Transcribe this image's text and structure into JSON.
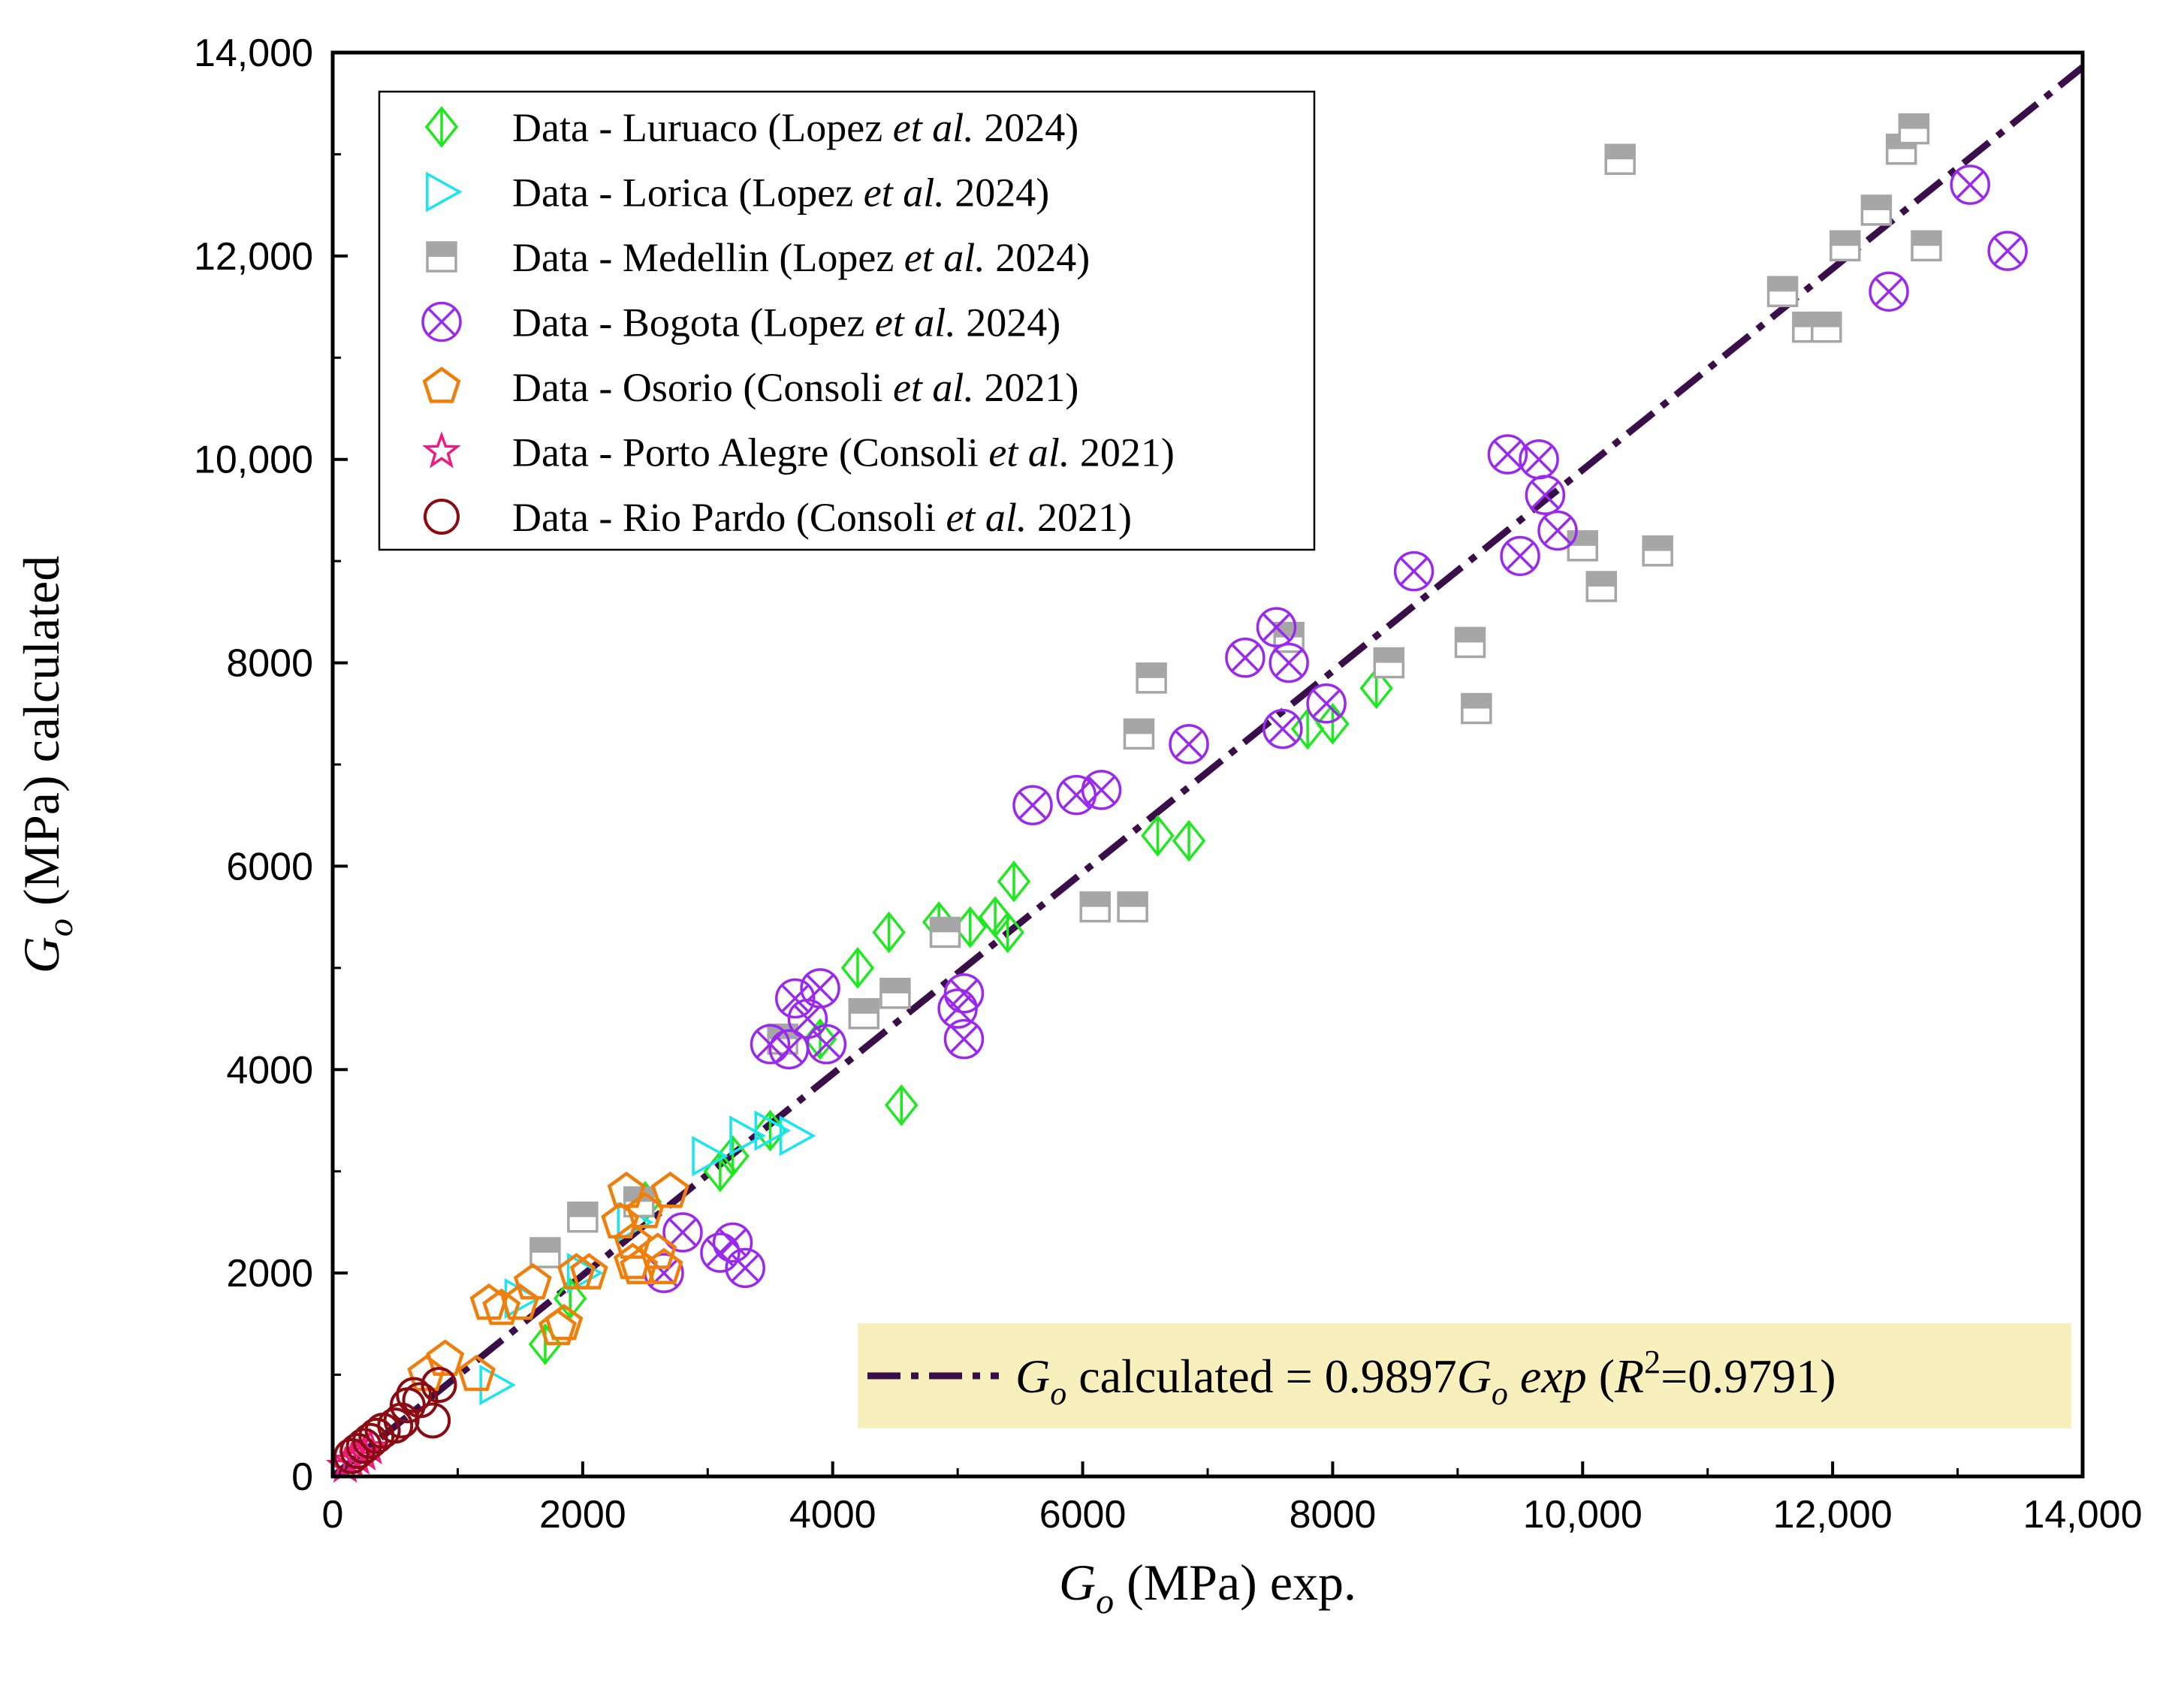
{
  "chart_data": {
    "type": "scatter",
    "xlabel": {
      "var": "G",
      "sub": "o",
      "text": " (MPa) exp."
    },
    "ylabel": {
      "var": "G",
      "sub": "o",
      "text": " (MPa) calculated"
    },
    "xlim": [
      0,
      14000
    ],
    "ylim": [
      0,
      14000
    ],
    "x_ticks": [
      0,
      2000,
      4000,
      6000,
      8000,
      10000,
      12000,
      14000
    ],
    "x_tick_labels": [
      "0",
      "2000",
      "4000",
      "6000",
      "8000",
      "10,000",
      "12,000",
      "14,000"
    ],
    "y_ticks": [
      0,
      2000,
      4000,
      6000,
      8000,
      10000,
      12000,
      14000
    ],
    "y_tick_labels": [
      "0",
      "2000",
      "4000",
      "6000",
      "8000",
      "10,000",
      "12,000",
      "14,000"
    ],
    "legend_position": "top-left",
    "series": [
      {
        "name": "Luruaco",
        "marker": "diamond",
        "color": "#1ee81e",
        "legend": {
          "pre": "Data - Luruaco (Lopez ",
          "it": "et al.",
          "post": " 2024)"
        },
        "points": [
          [
            1700,
            1300
          ],
          [
            1900,
            1750
          ],
          [
            2500,
            2700
          ],
          [
            3100,
            3000
          ],
          [
            3200,
            3150
          ],
          [
            3500,
            3400
          ],
          [
            3900,
            4300
          ],
          [
            4200,
            5000
          ],
          [
            4450,
            5350
          ],
          [
            4550,
            3650
          ],
          [
            4850,
            5450
          ],
          [
            5100,
            5400
          ],
          [
            5300,
            5500
          ],
          [
            5400,
            5350
          ],
          [
            5450,
            5850
          ],
          [
            6600,
            6300
          ],
          [
            6850,
            6250
          ],
          [
            7800,
            7350
          ],
          [
            8000,
            7400
          ],
          [
            8350,
            7750
          ]
        ]
      },
      {
        "name": "Lorica",
        "marker": "triangle-right",
        "color": "#18e5ef",
        "legend": {
          "pre": "Data - Lorica (Lopez ",
          "it": "et al.",
          "post": " 2024)"
        },
        "points": [
          [
            1300,
            900
          ],
          [
            1500,
            1750
          ],
          [
            2000,
            2000
          ],
          [
            2400,
            2500
          ],
          [
            3000,
            3150
          ],
          [
            3300,
            3350
          ],
          [
            3500,
            3400
          ],
          [
            3700,
            3350
          ]
        ]
      },
      {
        "name": "Medellin",
        "marker": "square-half",
        "color": "#a6a6a6",
        "legend": {
          "pre": "Data - Medellin (Lopez ",
          "it": "et al.",
          "post": " 2024)"
        },
        "points": [
          [
            1700,
            2200
          ],
          [
            2000,
            2550
          ],
          [
            2450,
            2700
          ],
          [
            3600,
            4300
          ],
          [
            4250,
            4550
          ],
          [
            4500,
            4750
          ],
          [
            4900,
            5350
          ],
          [
            6100,
            5600
          ],
          [
            6400,
            5600
          ],
          [
            6450,
            7300
          ],
          [
            6550,
            7850
          ],
          [
            7650,
            8250
          ],
          [
            8450,
            8000
          ],
          [
            9100,
            8200
          ],
          [
            9150,
            7550
          ],
          [
            10000,
            9150
          ],
          [
            10150,
            8750
          ],
          [
            10300,
            12950
          ],
          [
            10600,
            9100
          ],
          [
            11600,
            11650
          ],
          [
            11800,
            11300
          ],
          [
            11950,
            11300
          ],
          [
            12100,
            12100
          ],
          [
            12350,
            12450
          ],
          [
            12550,
            13050
          ],
          [
            12650,
            13250
          ],
          [
            12750,
            12100
          ]
        ]
      },
      {
        "name": "Bogota",
        "marker": "circle-x",
        "color": "#9a28ee",
        "legend": {
          "pre": "Data - Bogota (Lopez ",
          "it": "et al.",
          "post": " 2024)"
        },
        "points": [
          [
            2650,
            2000
          ],
          [
            2800,
            2400
          ],
          [
            3100,
            2200
          ],
          [
            3200,
            2300
          ],
          [
            3300,
            2050
          ],
          [
            3500,
            4250
          ],
          [
            3650,
            4200
          ],
          [
            3700,
            4700
          ],
          [
            3800,
            4500
          ],
          [
            3900,
            4800
          ],
          [
            3950,
            4250
          ],
          [
            5000,
            4600
          ],
          [
            5050,
            4300
          ],
          [
            5050,
            4750
          ],
          [
            5600,
            6600
          ],
          [
            5950,
            6700
          ],
          [
            6150,
            6750
          ],
          [
            6850,
            7200
          ],
          [
            7300,
            8050
          ],
          [
            7550,
            8350
          ],
          [
            7600,
            7350
          ],
          [
            7650,
            8000
          ],
          [
            7950,
            7600
          ],
          [
            8650,
            8900
          ],
          [
            9400,
            10050
          ],
          [
            9500,
            9050
          ],
          [
            9650,
            10000
          ],
          [
            9700,
            9650
          ],
          [
            9800,
            9300
          ],
          [
            12450,
            11650
          ],
          [
            13100,
            12700
          ],
          [
            13400,
            12050
          ]
        ]
      },
      {
        "name": "Osorio",
        "marker": "pentagon",
        "color": "#f07e0a",
        "legend": {
          "pre": "Data - Osorio (Consoli ",
          "it": "et al.",
          "post": " 2021)"
        },
        "points": [
          [
            750,
            1000
          ],
          [
            900,
            1150
          ],
          [
            1150,
            1000
          ],
          [
            1250,
            1700
          ],
          [
            1350,
            1650
          ],
          [
            1500,
            1700
          ],
          [
            1600,
            1900
          ],
          [
            1800,
            1450
          ],
          [
            1850,
            1500
          ],
          [
            1950,
            2000
          ],
          [
            2050,
            2000
          ],
          [
            2300,
            2500
          ],
          [
            2350,
            2800
          ],
          [
            2400,
            2300
          ],
          [
            2400,
            2100
          ],
          [
            2450,
            2050
          ],
          [
            2500,
            2600
          ],
          [
            2600,
            2200
          ],
          [
            2650,
            2050
          ],
          [
            2700,
            2800
          ]
        ]
      },
      {
        "name": "Porto Alegre",
        "marker": "star",
        "color": "#ee1a7d",
        "legend": {
          "pre": "Data - Porto Alegre (Consoli ",
          "it": "et al.",
          "post": " 2021)"
        },
        "points": [
          [
            100,
            100
          ],
          [
            150,
            150
          ],
          [
            200,
            180
          ],
          [
            250,
            220
          ],
          [
            300,
            280
          ]
        ]
      },
      {
        "name": "Rio Pardo",
        "marker": "circle",
        "color": "#8b0b12",
        "legend": {
          "pre": "Data - Rio Pardo (Consoli ",
          "it": "et al.",
          "post": " 2021)"
        },
        "points": [
          [
            150,
            200
          ],
          [
            200,
            250
          ],
          [
            250,
            300
          ],
          [
            300,
            350
          ],
          [
            350,
            400
          ],
          [
            400,
            450
          ],
          [
            500,
            500
          ],
          [
            550,
            550
          ],
          [
            600,
            700
          ],
          [
            650,
            800
          ],
          [
            700,
            750
          ],
          [
            800,
            550
          ],
          [
            850,
            900
          ]
        ]
      }
    ],
    "fit": {
      "slope": 0.9897,
      "color": "#3a0f49",
      "highlight": "#f7efbc",
      "label": {
        "var": "G",
        "sub": "o",
        "mid": " calculated  = 0.9897",
        "var2": "G",
        "sub2": "o",
        "exp": " exp",
        "open": "  (",
        "r": "R",
        "sup": "2",
        "close": "=0.9791)"
      }
    }
  }
}
